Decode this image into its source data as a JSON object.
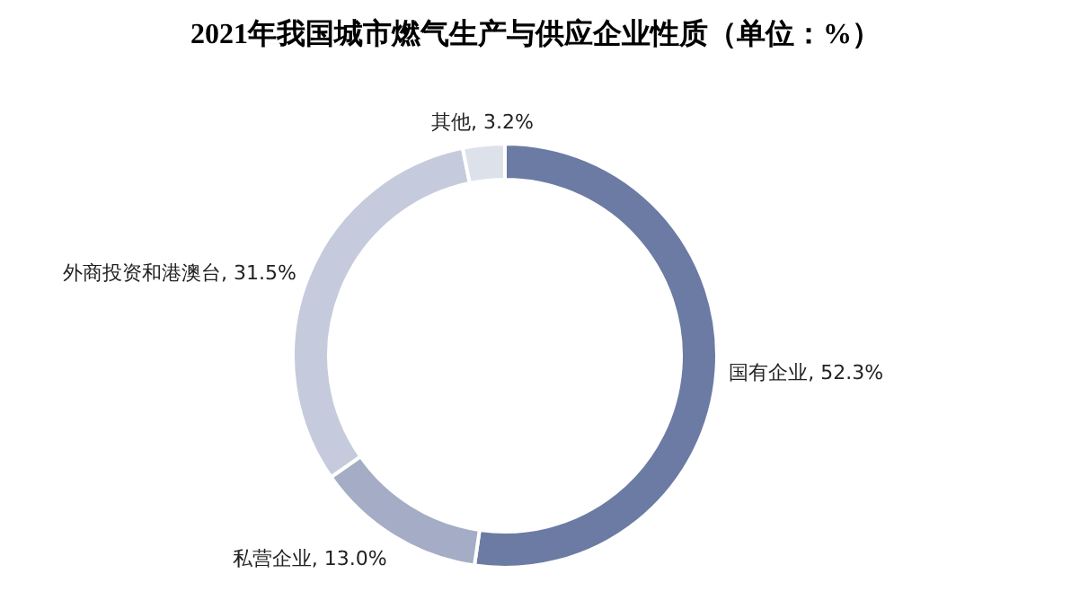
{
  "chart_data": {
    "type": "donut",
    "title": "2021年我国城市燃气生产与供应企业性质（单位：%）",
    "categories": [
      "国有企业",
      "私营企业",
      "外商投资和港澳台",
      "其他"
    ],
    "values": [
      52.3,
      13.0,
      31.5,
      3.2
    ],
    "value_labels": [
      "52.3%",
      "13.0%",
      "31.5%",
      "3.2%"
    ],
    "colors": [
      "#6b7ba3",
      "#a4adc5",
      "#c5cbdc",
      "#dde1ea"
    ]
  }
}
